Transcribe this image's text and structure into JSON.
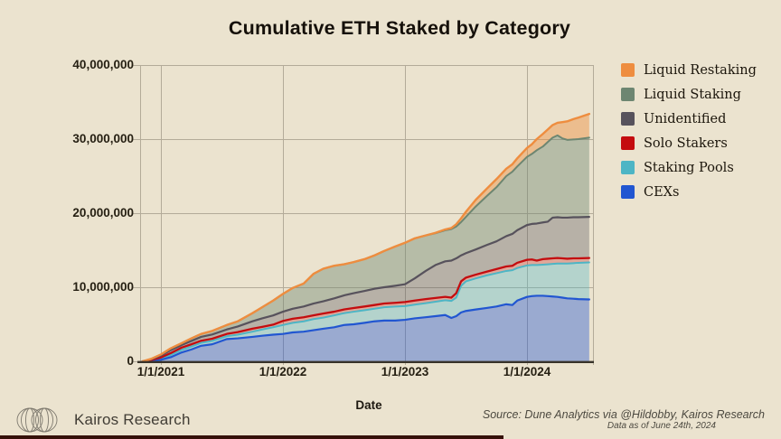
{
  "title": "Cumulative ETH Staked by Category",
  "background_color": "#ebe3cf",
  "grid_color": "#b3ab99",
  "axis_color": "#38332a",
  "chart_data": {
    "type": "area",
    "stacked": true,
    "title": "Cumulative ETH Staked by Category",
    "xlabel": "Date",
    "ylabel": "",
    "ylim": [
      0,
      40000000
    ],
    "grid": true,
    "legend_position": "right",
    "unit": "million ETH",
    "x_unit": "decimal year",
    "y_ticks": [
      {
        "label": "40,000,000",
        "value": 40
      },
      {
        "label": "30,000,000",
        "value": 30
      },
      {
        "label": "20,000,000",
        "value": 20
      },
      {
        "label": "10,000,000",
        "value": 10
      },
      {
        "label": "0",
        "value": 0
      }
    ],
    "x_ticks": [
      {
        "label": "1/1/2021",
        "year": 2021.0
      },
      {
        "label": "1/1/2022",
        "year": 2022.0
      },
      {
        "label": "1/1/2023",
        "year": 2023.0
      },
      {
        "label": "1/1/2024",
        "year": 2024.0
      }
    ],
    "x": [
      2020.85,
      2020.92,
      2021.0,
      2021.08,
      2021.17,
      2021.25,
      2021.33,
      2021.42,
      2021.54,
      2021.63,
      2021.75,
      2021.83,
      2021.92,
      2022.0,
      2022.08,
      2022.17,
      2022.25,
      2022.33,
      2022.42,
      2022.5,
      2022.58,
      2022.67,
      2022.75,
      2022.83,
      2022.92,
      2023.0,
      2023.08,
      2023.17,
      2023.25,
      2023.33,
      2023.38,
      2023.42,
      2023.46,
      2023.5,
      2023.58,
      2023.67,
      2023.75,
      2023.83,
      2023.88,
      2023.92,
      2024.0,
      2024.04,
      2024.08,
      2024.13,
      2024.17,
      2024.21,
      2024.25,
      2024.29,
      2024.33,
      2024.38,
      2024.42,
      2024.51
    ],
    "note": "stack_top values are cumulative stacked totals (million ETH), series listed bottom-to-top of the stack",
    "series": [
      {
        "name": "CEXs",
        "color": "#2156d1",
        "fill": "rgba(33,86,209,0.40)",
        "stack_top": [
          0,
          0.05,
          0.2,
          0.55,
          1.2,
          1.6,
          2.1,
          2.3,
          3.0,
          3.1,
          3.3,
          3.45,
          3.6,
          3.7,
          3.9,
          4.0,
          4.2,
          4.4,
          4.6,
          4.9,
          5.0,
          5.2,
          5.4,
          5.5,
          5.5,
          5.6,
          5.8,
          5.95,
          6.1,
          6.25,
          5.85,
          6.1,
          6.6,
          6.8,
          7.0,
          7.2,
          7.4,
          7.7,
          7.6,
          8.2,
          8.7,
          8.8,
          8.85,
          8.85,
          8.8,
          8.75,
          8.7,
          8.6,
          8.5,
          8.45,
          8.4,
          8.35
        ]
      },
      {
        "name": "Staking Pools",
        "color": "#4db5c5",
        "fill": "rgba(77,181,197,0.35)",
        "stack_top": [
          0,
          0.1,
          0.35,
          0.85,
          1.55,
          2.0,
          2.5,
          2.75,
          3.4,
          3.6,
          4.0,
          4.3,
          4.6,
          4.9,
          5.2,
          5.4,
          5.7,
          5.9,
          6.2,
          6.5,
          6.7,
          6.9,
          7.1,
          7.3,
          7.4,
          7.45,
          7.65,
          7.85,
          8.05,
          8.25,
          8.15,
          8.6,
          10.2,
          10.8,
          11.2,
          11.6,
          11.9,
          12.2,
          12.3,
          12.6,
          12.95,
          13.0,
          13.0,
          13.05,
          13.1,
          13.15,
          13.2,
          13.2,
          13.2,
          13.25,
          13.3,
          13.35
        ]
      },
      {
        "name": "Solo Stakers",
        "color": "#c40c0f",
        "fill": "rgba(196,12,15,0.28)",
        "stack_top": [
          0,
          0.18,
          0.52,
          1.1,
          1.85,
          2.3,
          2.78,
          3.05,
          3.7,
          3.95,
          4.4,
          4.65,
          4.95,
          5.45,
          5.75,
          5.95,
          6.2,
          6.45,
          6.7,
          7.0,
          7.2,
          7.4,
          7.6,
          7.8,
          7.9,
          8.0,
          8.2,
          8.4,
          8.55,
          8.7,
          8.6,
          9.2,
          10.8,
          11.3,
          11.7,
          12.1,
          12.45,
          12.8,
          12.9,
          13.3,
          13.7,
          13.75,
          13.6,
          13.8,
          13.85,
          13.9,
          13.95,
          13.9,
          13.85,
          13.9,
          13.9,
          13.95
        ]
      },
      {
        "name": "Unidentified",
        "color": "#57525c",
        "fill": "rgba(87,82,92,0.35)",
        "stack_top": [
          0,
          0.28,
          0.78,
          1.5,
          2.2,
          2.75,
          3.3,
          3.62,
          4.3,
          4.7,
          5.4,
          5.8,
          6.2,
          6.7,
          7.1,
          7.4,
          7.8,
          8.1,
          8.5,
          8.9,
          9.2,
          9.5,
          9.8,
          10.0,
          10.2,
          10.4,
          11.2,
          12.2,
          13.0,
          13.5,
          13.6,
          13.9,
          14.3,
          14.6,
          15.1,
          15.7,
          16.2,
          16.9,
          17.2,
          17.7,
          18.4,
          18.55,
          18.6,
          18.75,
          18.85,
          19.4,
          19.45,
          19.4,
          19.4,
          19.45,
          19.45,
          19.5
        ]
      },
      {
        "name": "Liquid Staking",
        "color": "#6d8671, ",
        "fill": "rgba(109,134,113,0.42)",
        "stack_top": [
          0,
          0.33,
          0.92,
          1.75,
          2.45,
          3.1,
          3.7,
          4.1,
          4.9,
          5.4,
          6.5,
          7.3,
          8.2,
          9.1,
          9.9,
          10.5,
          11.8,
          12.5,
          12.9,
          13.1,
          13.4,
          13.8,
          14.3,
          14.9,
          15.5,
          16.0,
          16.6,
          17.0,
          17.3,
          17.7,
          17.85,
          18.2,
          18.8,
          19.5,
          20.9,
          22.3,
          23.5,
          25.0,
          25.6,
          26.3,
          27.6,
          28.0,
          28.5,
          29.0,
          29.6,
          30.2,
          30.5,
          30.1,
          29.9,
          29.95,
          30.0,
          30.2
        ]
      },
      {
        "name": "Liquid Restaking",
        "color": "#ee8d3f",
        "fill": "rgba(238,141,63,0.45)",
        "stack_top": [
          0,
          0.33,
          0.92,
          1.75,
          2.45,
          3.1,
          3.7,
          4.1,
          4.9,
          5.4,
          6.5,
          7.3,
          8.2,
          9.1,
          9.9,
          10.5,
          11.8,
          12.5,
          12.9,
          13.1,
          13.4,
          13.8,
          14.3,
          14.9,
          15.5,
          16.0,
          16.6,
          17.0,
          17.35,
          17.8,
          18.0,
          18.5,
          19.3,
          20.2,
          21.8,
          23.3,
          24.6,
          26.0,
          26.6,
          27.4,
          28.8,
          29.3,
          30.0,
          30.7,
          31.3,
          31.9,
          32.2,
          32.3,
          32.4,
          32.7,
          32.9,
          33.4
        ]
      }
    ]
  },
  "legend": {
    "items": [
      {
        "label": "Liquid Restaking",
        "color": "#ee8d3f"
      },
      {
        "label": "Liquid Staking",
        "color": "#6d8671"
      },
      {
        "label": "Unidentified",
        "color": "#57525c"
      },
      {
        "label": "Solo Stakers",
        "color": "#c40c0f"
      },
      {
        "label": "Staking Pools",
        "color": "#4db5c5"
      },
      {
        "label": "CEXs",
        "color": "#2156d1"
      }
    ]
  },
  "axis": {
    "x_title": "Date"
  },
  "footer": {
    "brand": "Kairos Research",
    "source_line1": "Source: Dune Analytics via @Hildobby, Kairos Research",
    "source_line2": "Data as of June 24th, 2024"
  }
}
